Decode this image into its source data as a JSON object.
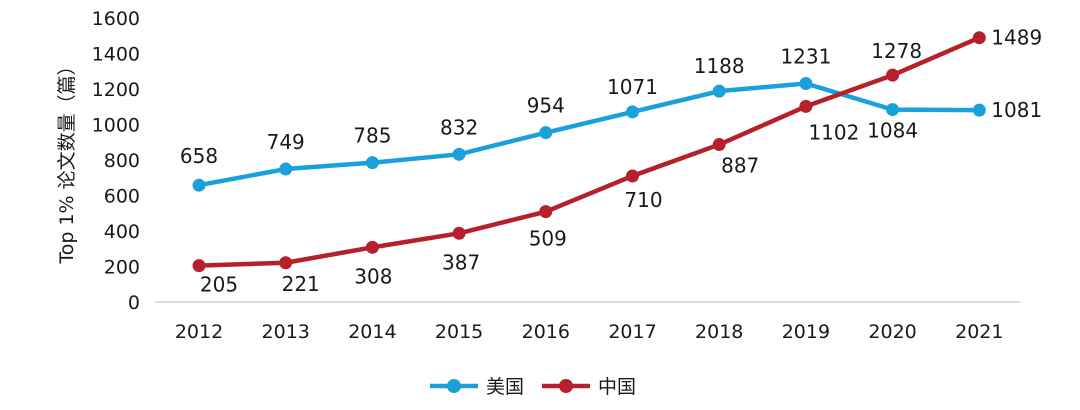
{
  "chart_data": {
    "type": "line",
    "categories": [
      "2012",
      "2013",
      "2014",
      "2015",
      "2016",
      "2017",
      "2018",
      "2019",
      "2020",
      "2021"
    ],
    "series": [
      {
        "name": "美国",
        "color": "#1aa0db",
        "values": [
          658,
          749,
          785,
          832,
          954,
          1071,
          1188,
          1231,
          1084,
          1081
        ]
      },
      {
        "name": "中国",
        "color": "#b5202a",
        "values": [
          205,
          221,
          308,
          387,
          509,
          710,
          887,
          1102,
          1278,
          1489
        ]
      }
    ],
    "title": "",
    "xlabel": "",
    "ylabel": "Top 1% 论文数量（篇）",
    "ylim": [
      0,
      1600
    ],
    "yticks": [
      0,
      200,
      400,
      600,
      800,
      1000,
      1200,
      1400,
      1600
    ],
    "grid": false,
    "legend_position": "bottom-center"
  }
}
